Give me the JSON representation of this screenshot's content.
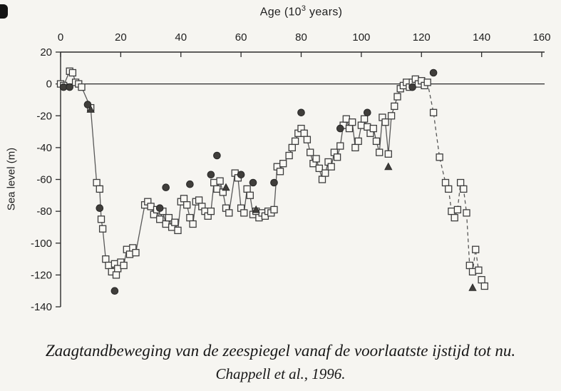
{
  "page": {
    "background": "#f6f5f1",
    "caption_line1": "Zaagtandbeweging van de zeespiegel vanaf de voorlaatste ijstijd tot nu.",
    "caption_line2": "Chappell et al., 1996."
  },
  "chart_data": {
    "type": "scatter",
    "title": {
      "prefix": "Age (10",
      "exponent": "3",
      "suffix": " years)"
    },
    "ylabel": "Sea level (m)",
    "xlim": [
      0,
      160
    ],
    "ylim": [
      -140,
      20
    ],
    "x_ticks": [
      0,
      20,
      40,
      60,
      80,
      100,
      120,
      140,
      160
    ],
    "y_ticks": [
      20,
      0,
      -20,
      -40,
      -60,
      -80,
      -100,
      -120,
      -140
    ],
    "zero_line": 0,
    "dashed_from_age": 122,
    "grid": false,
    "legend": "none",
    "colors": {
      "axis": "#2b2b2b",
      "line": "#585858",
      "marker_stroke": "#3c3c3c",
      "marker_fill_open": "#faf9f5",
      "marker_fill_dark": "#403e3b"
    },
    "series": [
      {
        "name": "sea-level-curve-open-squares",
        "marker": "square",
        "line": true,
        "points": [
          [
            0,
            0
          ],
          [
            1,
            -1
          ],
          [
            3,
            8
          ],
          [
            4,
            7
          ],
          [
            5,
            1
          ],
          [
            6,
            0
          ],
          [
            7,
            -2
          ],
          [
            10,
            -15
          ],
          [
            12,
            -62
          ],
          [
            13,
            -66
          ],
          [
            13.5,
            -85
          ],
          [
            14,
            -91
          ],
          [
            15,
            -110
          ],
          [
            16,
            -114
          ],
          [
            17,
            -118
          ],
          [
            18,
            -113
          ],
          [
            18.5,
            -120
          ],
          [
            19,
            -116
          ],
          [
            20,
            -112
          ],
          [
            21,
            -114
          ],
          [
            22,
            -104
          ],
          [
            23,
            -107
          ],
          [
            24,
            -103
          ],
          [
            25,
            -106
          ],
          [
            28,
            -76
          ],
          [
            29,
            -74
          ],
          [
            30,
            -77
          ],
          [
            31,
            -82
          ],
          [
            32,
            -79
          ],
          [
            33,
            -85
          ],
          [
            34,
            -80
          ],
          [
            35,
            -88
          ],
          [
            36,
            -84
          ],
          [
            37,
            -90
          ],
          [
            38,
            -87
          ],
          [
            39,
            -92
          ],
          [
            40,
            -74
          ],
          [
            41,
            -72
          ],
          [
            42,
            -76
          ],
          [
            43,
            -84
          ],
          [
            44,
            -88
          ],
          [
            45,
            -74
          ],
          [
            46,
            -73
          ],
          [
            47,
            -77
          ],
          [
            48,
            -80
          ],
          [
            49,
            -83
          ],
          [
            50,
            -80
          ],
          [
            51,
            -62
          ],
          [
            52,
            -66
          ],
          [
            53,
            -61
          ],
          [
            54,
            -68
          ],
          [
            55,
            -78
          ],
          [
            56,
            -81
          ],
          [
            58,
            -56
          ],
          [
            59,
            -59
          ],
          [
            60,
            -78
          ],
          [
            61,
            -81
          ],
          [
            62,
            -66
          ],
          [
            63,
            -70
          ],
          [
            64,
            -82
          ],
          [
            65,
            -80
          ],
          [
            66,
            -84
          ],
          [
            67,
            -81
          ],
          [
            68,
            -83
          ],
          [
            69,
            -80
          ],
          [
            70,
            -81
          ],
          [
            71,
            -79
          ],
          [
            72,
            -52
          ],
          [
            73,
            -55
          ],
          [
            74,
            -50
          ],
          [
            76,
            -45
          ],
          [
            77,
            -40
          ],
          [
            78,
            -36
          ],
          [
            79,
            -31
          ],
          [
            80,
            -28
          ],
          [
            81,
            -31
          ],
          [
            82,
            -35
          ],
          [
            83,
            -43
          ],
          [
            84,
            -50
          ],
          [
            85,
            -47
          ],
          [
            86,
            -53
          ],
          [
            87,
            -60
          ],
          [
            88,
            -56
          ],
          [
            89,
            -49
          ],
          [
            90,
            -52
          ],
          [
            91,
            -43
          ],
          [
            92,
            -46
          ],
          [
            93,
            -39
          ],
          [
            94,
            -26
          ],
          [
            95,
            -22
          ],
          [
            96,
            -28
          ],
          [
            97,
            -24
          ],
          [
            98,
            -40
          ],
          [
            99,
            -36
          ],
          [
            100,
            -26
          ],
          [
            101,
            -22
          ],
          [
            102,
            -27
          ],
          [
            103,
            -31
          ],
          [
            104,
            -28
          ],
          [
            105,
            -36
          ],
          [
            106,
            -43
          ],
          [
            107,
            -21
          ],
          [
            108,
            -24
          ],
          [
            109,
            -44
          ],
          [
            110,
            -20
          ],
          [
            111,
            -14
          ],
          [
            112,
            -8
          ],
          [
            113,
            -3
          ],
          [
            114,
            -1
          ],
          [
            115,
            1
          ],
          [
            116,
            -2
          ],
          [
            117,
            1
          ],
          [
            118,
            3
          ],
          [
            119,
            0
          ],
          [
            120,
            2
          ],
          [
            121,
            -1
          ],
          [
            122,
            1
          ],
          [
            124,
            -18
          ],
          [
            126,
            -46
          ],
          [
            128,
            -62
          ],
          [
            129,
            -66
          ],
          [
            130,
            -80
          ],
          [
            131,
            -84
          ],
          [
            132,
            -79
          ],
          [
            133,
            -62
          ],
          [
            134,
            -66
          ],
          [
            135,
            -81
          ],
          [
            136,
            -114
          ],
          [
            137,
            -118
          ],
          [
            138,
            -104
          ],
          [
            139,
            -117
          ],
          [
            140,
            -123
          ],
          [
            141,
            -127
          ]
        ]
      },
      {
        "name": "filled-circles",
        "marker": "circle",
        "line": false,
        "points": [
          [
            1,
            -2
          ],
          [
            3,
            -2
          ],
          [
            9,
            -13
          ],
          [
            13,
            -78
          ],
          [
            18,
            -130
          ],
          [
            33,
            -78
          ],
          [
            35,
            -65
          ],
          [
            43,
            -63
          ],
          [
            50,
            -57
          ],
          [
            52,
            -45
          ],
          [
            60,
            -57
          ],
          [
            64,
            -62
          ],
          [
            71,
            -62
          ],
          [
            80,
            -18
          ],
          [
            93,
            -28
          ],
          [
            102,
            -18
          ],
          [
            117,
            -2
          ],
          [
            124,
            7
          ]
        ]
      },
      {
        "name": "filled-triangles",
        "marker": "triangle",
        "line": false,
        "points": [
          [
            10,
            -16
          ],
          [
            55,
            -65
          ],
          [
            65,
            -79
          ],
          [
            109,
            -52
          ],
          [
            137,
            -128
          ]
        ]
      }
    ]
  }
}
